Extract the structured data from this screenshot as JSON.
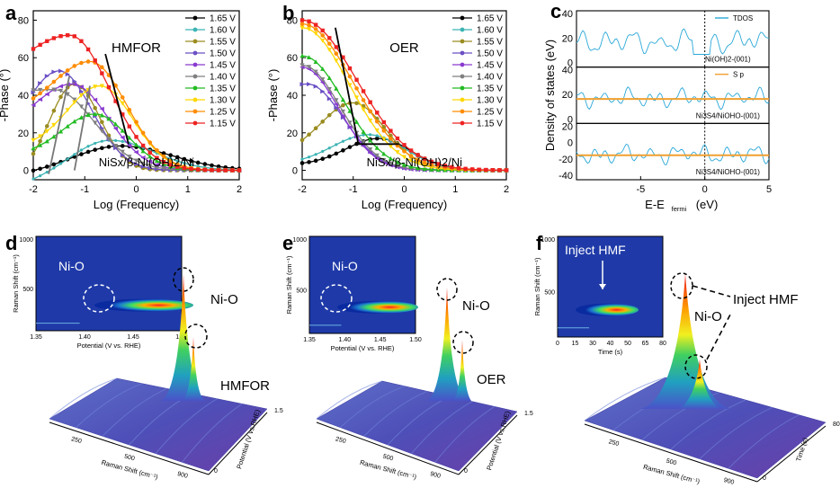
{
  "panels": {
    "a": "a",
    "b": "b",
    "c": "c",
    "d": "d",
    "e": "e",
    "f": "f"
  },
  "colors": {
    "voltages": [
      "#000000",
      "#3cb3b3",
      "#9a8c20",
      "#6a4fc4",
      "#8a3ad0",
      "#7f7f7f",
      "#22bb22",
      "#ffd700",
      "#ff8c00",
      "#ee2222"
    ]
  },
  "chart_data": [
    {
      "id": "a",
      "type": "line",
      "title": "HMFOR",
      "annotation": "NiSx/β-Ni(OH)2/Ni",
      "xlabel": "Log (Frequency)",
      "ylabel": "-Phase (°)",
      "xlim": [
        -2,
        2
      ],
      "ylim": [
        -5,
        85
      ],
      "xticks": [
        "-2",
        "-1",
        "0",
        "1",
        "2"
      ],
      "yticks": [
        "0",
        "20",
        "40",
        "60",
        "80"
      ],
      "legend_position": "right",
      "series": [
        {
          "name": "1.65 V",
          "peak": 13,
          "center": -0.3,
          "width": 1.4,
          "low": -4
        },
        {
          "name": "1.60 V",
          "peak": 16,
          "center": -0.5,
          "width": 1.2,
          "low": -10
        },
        {
          "name": "1.55 V",
          "peak": 46,
          "center": -1.2,
          "width": 0.7,
          "low": -5
        },
        {
          "name": "1.50 V",
          "peak": 53,
          "center": -1.5,
          "width": 0.9,
          "low": 10
        },
        {
          "name": "1.45 V",
          "peak": 46,
          "center": -1.25,
          "width": 1.0,
          "low": 20
        },
        {
          "name": "1.40 V",
          "peak": 43,
          "center": -1.6,
          "width": 1.1,
          "low": 40
        },
        {
          "name": "1.35 V",
          "peak": 30,
          "center": -0.8,
          "width": 0.9,
          "low": 8
        },
        {
          "name": "1.30 V",
          "peak": 45,
          "center": -0.7,
          "width": 0.9,
          "low": 12
        },
        {
          "name": "1.25 V",
          "peak": 58,
          "center": -0.9,
          "width": 1.0,
          "low": 30
        },
        {
          "name": "1.15 V",
          "peak": 72,
          "center": -1.3,
          "width": 1.1,
          "low": 50
        }
      ]
    },
    {
      "id": "b",
      "type": "line",
      "title": "OER",
      "annotation": "NiSx/β-Ni(OH)2/Ni",
      "xlabel": "Log (Frequency)",
      "ylabel": "-Phase (°)",
      "xlim": [
        -2,
        2
      ],
      "ylim": [
        -5,
        85
      ],
      "xticks": [
        "-2",
        "-1",
        "0",
        "1",
        "2"
      ],
      "yticks": [
        "0",
        "20",
        "40",
        "60",
        "80"
      ],
      "legend_position": "right",
      "series": [
        {
          "name": "1.65 V",
          "peak": 17,
          "center": -0.5,
          "width": 0.9,
          "low": 3
        },
        {
          "name": "1.60 V",
          "peak": 19,
          "center": -0.7,
          "width": 1.0,
          "low": 3
        },
        {
          "name": "1.55 V",
          "peak": 36,
          "center": -1.0,
          "width": 0.9,
          "low": 8
        },
        {
          "name": "1.50 V",
          "peak": 46,
          "center": -1.9,
          "width": 1.0,
          "low": 30
        },
        {
          "name": "1.45 V",
          "peak": 55,
          "center": -2.0,
          "width": 1.0,
          "low": 52
        },
        {
          "name": "1.40 V",
          "peak": 56,
          "center": -2.0,
          "width": 1.05,
          "low": 53
        },
        {
          "name": "1.35 V",
          "peak": 61,
          "center": -2.0,
          "width": 1.15,
          "low": 58
        },
        {
          "name": "1.30 V",
          "peak": 76,
          "center": -2.0,
          "width": 1.3,
          "low": 75
        },
        {
          "name": "1.25 V",
          "peak": 78,
          "center": -2.0,
          "width": 1.4,
          "low": 77
        },
        {
          "name": "1.15 V",
          "peak": 80,
          "center": -2.0,
          "width": 1.5,
          "low": 79
        }
      ]
    },
    {
      "id": "c",
      "type": "line",
      "xlabel": "E-E",
      "xlabel_sub": "fermi",
      "xlabel_unit": " (eV)",
      "ylabel": "Density of states (eV)",
      "xlim": [
        -10,
        5
      ],
      "xticks": [
        "-5",
        "0",
        "5"
      ],
      "subplots": [
        {
          "label": "Ni(OH)2-(001)",
          "yticks": [
            "0",
            "20",
            "40"
          ],
          "legend": "TDOS"
        },
        {
          "label": "Ni3S4/NiOHO-(001)",
          "yticks": [
            "0",
            "20",
            "40"
          ],
          "legend": "S p"
        },
        {
          "label": "Ni3S4/NiOHO-(001)",
          "yticks": [
            "-40",
            "-20",
            "0",
            "20"
          ],
          "legend": ""
        }
      ]
    }
  ],
  "insets": {
    "d": {
      "ylabel": "Raman Shift (cm⁻¹)",
      "xlabel": "Potential (V vs. RHE)",
      "yticks": [
        "1000",
        "500"
      ],
      "xticks": [
        "1.35",
        "1.40",
        "1.45",
        "1.50"
      ],
      "label": "Ni-O"
    },
    "e": {
      "ylabel": "Raman Shift (cm⁻¹)",
      "xlabel": "Potential (V vs. RHE)",
      "yticks": [
        "1000",
        "500"
      ],
      "xticks": [
        "1.35",
        "1.40",
        "1.45",
        "1.50"
      ],
      "label": "Ni-O"
    },
    "f": {
      "ylabel": "Raman Shift (cm⁻¹)",
      "xlabel": "Time (s)",
      "yticks": [
        "1000",
        "500"
      ],
      "xticks": [
        "0",
        "15",
        "30",
        "40",
        "50",
        "65",
        "80"
      ],
      "label": "Inject  HMF"
    }
  },
  "surfaces": {
    "d": {
      "label1": "Ni-O",
      "label2": "HMFOR",
      "xaxis": "Raman Shift (cm⁻¹)",
      "yaxis": "Potential (V vs.RHE)",
      "xticks": [
        "250",
        "500",
        "900"
      ],
      "yticks": [
        "1.5",
        "0"
      ]
    },
    "e": {
      "label1": "Ni-O",
      "label2": "OER",
      "xaxis": "Raman Shift (cm⁻¹)",
      "yaxis": "Potential (V vs.RHE)",
      "xticks": [
        "250",
        "500",
        "900"
      ],
      "yticks": [
        "1.5",
        "0"
      ]
    },
    "f": {
      "label1": "Inject  HMF",
      "label2": "Ni-O",
      "xaxis": "Raman Shift (cm⁻¹)",
      "yaxis": "Time (s)",
      "xticks": [
        "250",
        "500",
        "900"
      ],
      "yticks": [
        "80",
        "0"
      ]
    }
  }
}
